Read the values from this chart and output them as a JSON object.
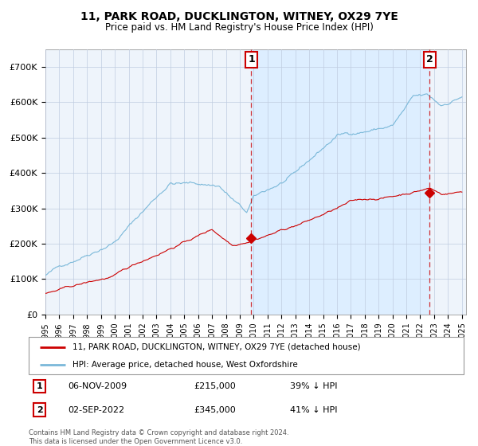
{
  "title": "11, PARK ROAD, DUCKLINGTON, WITNEY, OX29 7YE",
  "subtitle": "Price paid vs. HM Land Registry's House Price Index (HPI)",
  "ylim": [
    0,
    750000
  ],
  "yticks": [
    0,
    100000,
    200000,
    300000,
    400000,
    500000,
    600000,
    700000
  ],
  "ytick_labels": [
    "£0",
    "£100K",
    "£200K",
    "£300K",
    "£400K",
    "£500K",
    "£600K",
    "£700K"
  ],
  "hpi_color": "#7ab8d9",
  "price_color": "#cc0000",
  "chart_bg": "#eef4fb",
  "span_bg": "#ddeeff",
  "grid_color": "#c0cce0",
  "transaction1_price": 215000,
  "transaction2_price": 345000,
  "t1_year": 2009.833,
  "t2_year": 2022.667,
  "legend_label1": "11, PARK ROAD, DUCKLINGTON, WITNEY, OX29 7YE (detached house)",
  "legend_label2": "HPI: Average price, detached house, West Oxfordshire",
  "t1_date": "06-NOV-2009",
  "t1_price_str": "£215,000",
  "t1_pct": "39% ↓ HPI",
  "t2_date": "02-SEP-2022",
  "t2_price_str": "£345,000",
  "t2_pct": "41% ↓ HPI",
  "footer": "Contains HM Land Registry data © Crown copyright and database right 2024.\nThis data is licensed under the Open Government Licence v3.0.",
  "start_year": 1995,
  "end_year": 2025
}
